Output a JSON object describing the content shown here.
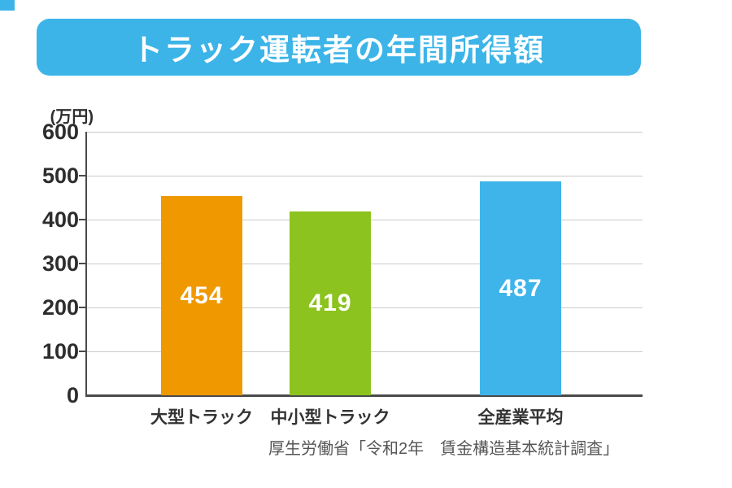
{
  "decor": {
    "corner_accent_color": "#3cb4e8"
  },
  "header": {
    "title": "トラック運転者の年間所得額",
    "banner_color": "#3cb4e8",
    "title_color": "#ffffff"
  },
  "chart_data": {
    "type": "bar",
    "title": "トラック運転者の年間所得額",
    "unit_label": "(万円)",
    "categories": [
      "大型トラック",
      "中小型トラック",
      "全産業平均"
    ],
    "values": [
      454,
      419,
      487
    ],
    "bar_colors": [
      "#f09800",
      "#8cc31f",
      "#3eb4ea"
    ],
    "value_label_color": "#ffffff",
    "xlabel": "",
    "ylabel": "万円",
    "ylim": [
      0,
      600
    ],
    "yticks": [
      0,
      100,
      200,
      300,
      400,
      500,
      600
    ],
    "grid": true,
    "legend": false,
    "gridline_color": "#cbcbcb",
    "axis_color": "#4a4a4a"
  },
  "source": {
    "text": "厚生労働省「令和2年　賃金構造基本統計調査」"
  }
}
